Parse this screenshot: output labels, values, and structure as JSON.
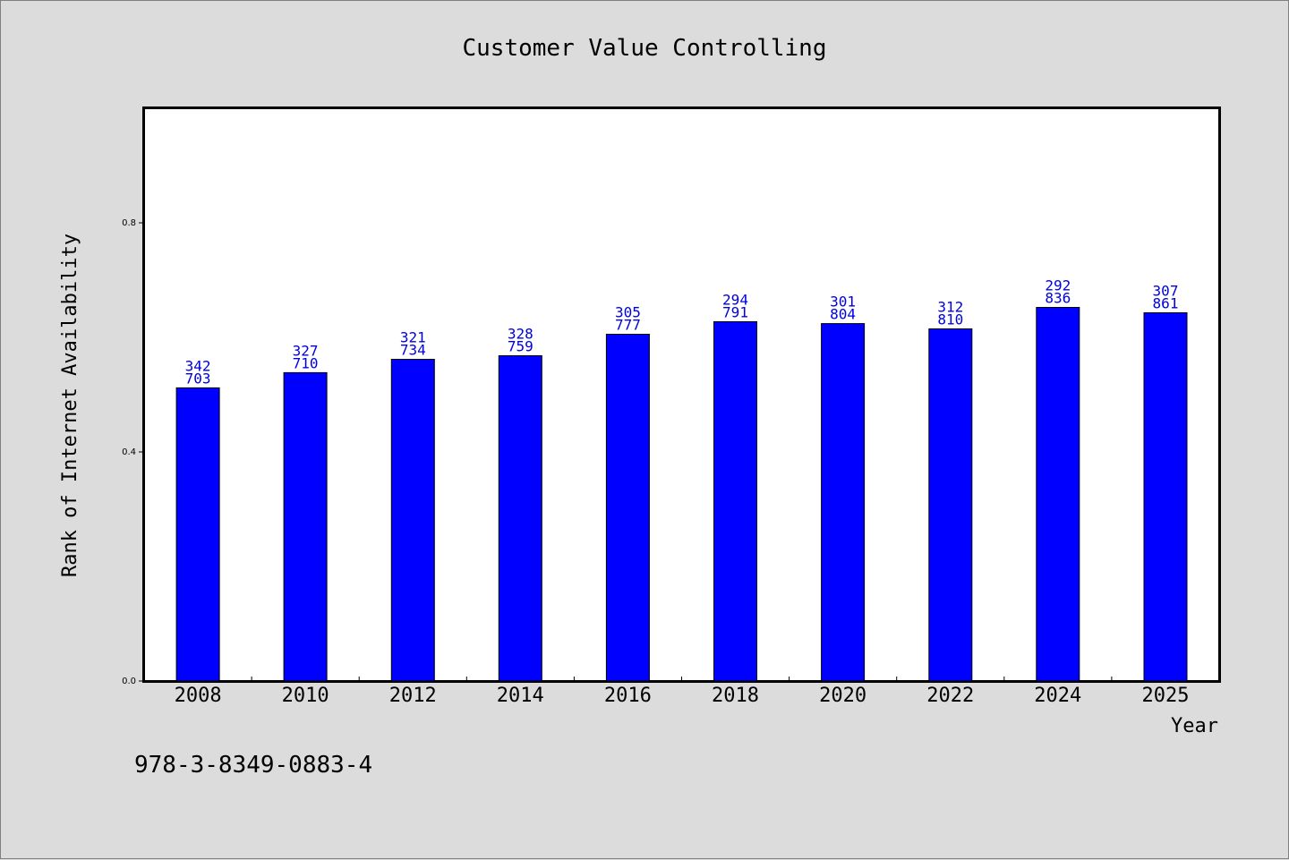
{
  "chart_data": {
    "type": "bar",
    "title": "Customer Value Controlling",
    "xlabel": "Year",
    "ylabel": "Rank of Internet Availability",
    "categories": [
      "2008",
      "2010",
      "2012",
      "2014",
      "2016",
      "2018",
      "2020",
      "2022",
      "2024",
      "2025"
    ],
    "values": [
      0.5119,
      0.5385,
      0.5617,
      0.5679,
      0.6054,
      0.6273,
      0.6241,
      0.6148,
      0.6523,
      0.6429
    ],
    "data_labels": [
      [
        "342",
        "703"
      ],
      [
        "327",
        "710"
      ],
      [
        "321",
        "734"
      ],
      [
        "328",
        "759"
      ],
      [
        "305",
        "777"
      ],
      [
        "294",
        "791"
      ],
      [
        "301",
        "804"
      ],
      [
        "312",
        "810"
      ],
      [
        "292",
        "836"
      ],
      [
        "307",
        "861"
      ]
    ],
    "yticks": [
      "0.0",
      "0.4",
      "0.8"
    ],
    "ytick_values": [
      0.0,
      0.4,
      0.8
    ],
    "ylim": [
      0.0,
      1.0
    ],
    "bar_color": "#0000ff",
    "label_color": "#0000e0",
    "grid": false,
    "legend": "none"
  },
  "annotation": "978-3-8349-0883-4"
}
